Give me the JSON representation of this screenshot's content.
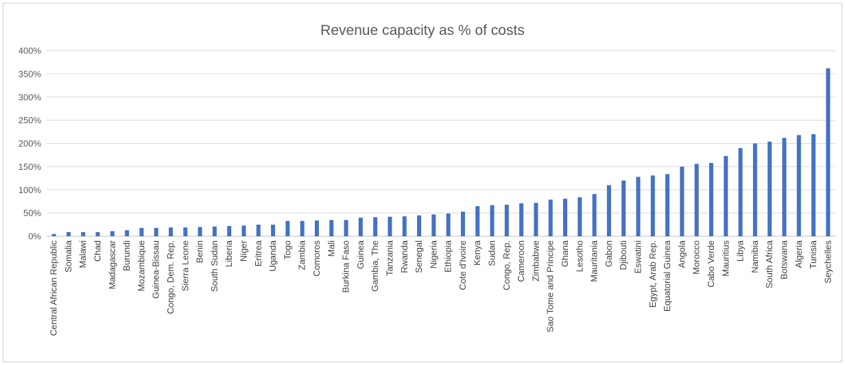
{
  "chart_data": {
    "type": "bar",
    "title": "Revenue capacity as % of costs",
    "xlabel": "",
    "ylabel": "",
    "ylim": [
      0,
      400
    ],
    "y_ticks": [
      "0%",
      "50%",
      "100%",
      "150%",
      "200%",
      "250%",
      "300%",
      "350%",
      "400%"
    ],
    "grid": true,
    "legend": "none",
    "bar_color": "#4472C4",
    "categories": [
      "Central African Republic",
      "Somalia",
      "Malawi",
      "Chad",
      "Madagascar",
      "Burundi",
      "Mozambique",
      "Guinea-Bissau",
      "Congo, Dem. Rep.",
      "Sierra Leone",
      "Benin",
      "South Sudan",
      "Liberia",
      "Niger",
      "Eritrea",
      "Uganda",
      "Togo",
      "Zambia",
      "Comoros",
      "Mali",
      "Burkina Faso",
      "Guinea",
      "Gambia, The",
      "Tanzania",
      "Rwanda",
      "Senegal",
      "Nigeria",
      "Ethiopia",
      "Cote d'Ivoire",
      "Kenya",
      "Sudan",
      "Congo, Rep.",
      "Cameroon",
      "Zimbabwe",
      "Sao Tome and Principe",
      "Ghana",
      "Lesotho",
      "Mauritania",
      "Gabon",
      "Djibouti",
      "Eswatini",
      "Egypt, Arab Rep.",
      "Equatorial Guinea",
      "Angola",
      "Morocco",
      "Cabo Verde",
      "Mauritius",
      "Libya",
      "Namibia",
      "South Africa",
      "Botswana",
      "Algeria",
      "Tunisia",
      "Seychelles"
    ],
    "values": [
      5,
      9,
      9,
      9,
      11,
      13,
      18,
      18,
      19,
      19,
      20,
      21,
      22,
      23,
      25,
      25,
      33,
      33,
      34,
      35,
      35,
      40,
      41,
      42,
      43,
      45,
      47,
      49,
      53,
      65,
      67,
      68,
      71,
      72,
      79,
      81,
      84,
      91,
      110,
      120,
      128,
      131,
      134,
      150,
      156,
      158,
      173,
      190,
      200,
      204,
      212,
      218,
      220,
      362
    ]
  }
}
